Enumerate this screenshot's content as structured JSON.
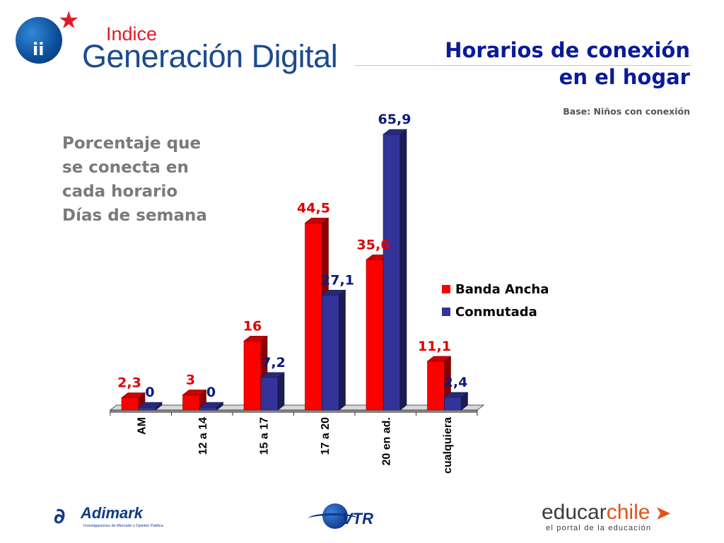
{
  "header": {
    "logo_small": "Indice",
    "logo_large": "Generación Digital",
    "title_line1": "Horarios de conexión",
    "title_line2": "en el hogar",
    "base_note": "Base: Niños con conexión"
  },
  "left_text": {
    "line1": "Porcentaje que",
    "line2": "se conecta en",
    "line3": "cada horario",
    "line4": "Días de semana"
  },
  "chart_data": {
    "type": "bar",
    "categories": [
      "AM",
      "12 a 14",
      "15 a 17",
      "17 a 20",
      "20 en ad.",
      "cualquiera"
    ],
    "series": [
      {
        "name": "Banda Ancha",
        "values": [
          2.3,
          3,
          16,
          44.5,
          35.6,
          11.1
        ],
        "labels": [
          "2,3",
          "3",
          "16",
          "44,5",
          "35,6",
          "11,1"
        ],
        "color": "#ff0000",
        "label_color": "#e00000"
      },
      {
        "name": "Conmutada",
        "values": [
          0,
          0,
          7.2,
          27.1,
          65.9,
          2.4
        ],
        "labels": [
          "0",
          "0",
          "7,2",
          "27,1",
          "65,9",
          "2,4"
        ],
        "color": "#33339a",
        "label_color": "#0b1a80"
      }
    ],
    "ylim": [
      0,
      65.9
    ],
    "grid": false,
    "legend_position": "right"
  },
  "footer": {
    "adimark_name": "Adimark",
    "adimark_tagline": "Investigaciones de Mercado y Opinión Pública",
    "vtr_name": "VTR",
    "educar_part1": "educar",
    "educar_part2": "chile",
    "educar_tagline": "el portal de la educación"
  },
  "colors": {
    "title": "#0b1a9a",
    "subtitle_gray": "#7a7a7a",
    "brand_red": "#e21b2a",
    "brand_blue": "#1b4a8f"
  }
}
